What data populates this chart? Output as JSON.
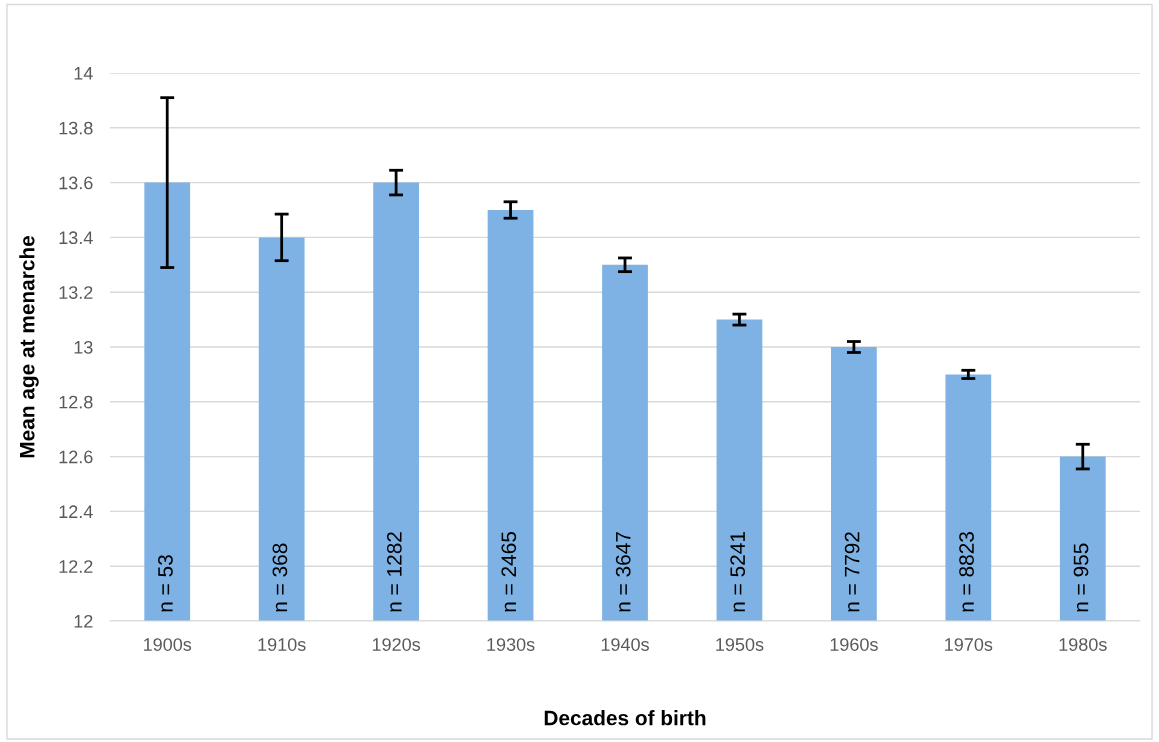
{
  "chart_data": {
    "type": "bar",
    "xlabel": "Decades of birth",
    "ylabel": "Mean age at menarche",
    "categories": [
      "1900s",
      "1910s",
      "1920s",
      "1930s",
      "1940s",
      "1950s",
      "1960s",
      "1970s",
      "1980s"
    ],
    "values": [
      13.6,
      13.4,
      13.6,
      13.5,
      13.3,
      13.1,
      13.0,
      12.9,
      12.6
    ],
    "errors": [
      0.31,
      0.085,
      0.045,
      0.03,
      0.025,
      0.02,
      0.02,
      0.015,
      0.045
    ],
    "color": "#7eb2e4",
    "ylim": [
      12,
      14
    ],
    "yticks": [
      12,
      {
        "value": 12.2,
        "label": "12.2"
      },
      {
        "value": 12.4,
        "label": "12.4"
      },
      {
        "value": 12.6,
        "label": "12.6"
      },
      {
        "value": 12.8,
        "label": "12.8"
      },
      13,
      {
        "value": 13.2,
        "label": "13.2"
      },
      {
        "value": 13.4,
        "label": "13.4"
      },
      {
        "value": 13.6,
        "label": "13.6"
      },
      {
        "value": 13.8,
        "label": "13.8"
      },
      14
    ],
    "grid": "y",
    "annotations": [
      "n = 53",
      "n = 368",
      "n = 1282",
      "n = 2465",
      "n = 3647",
      "n = 5241",
      "n = 7792",
      "n = 8823",
      "n = 955"
    ]
  }
}
